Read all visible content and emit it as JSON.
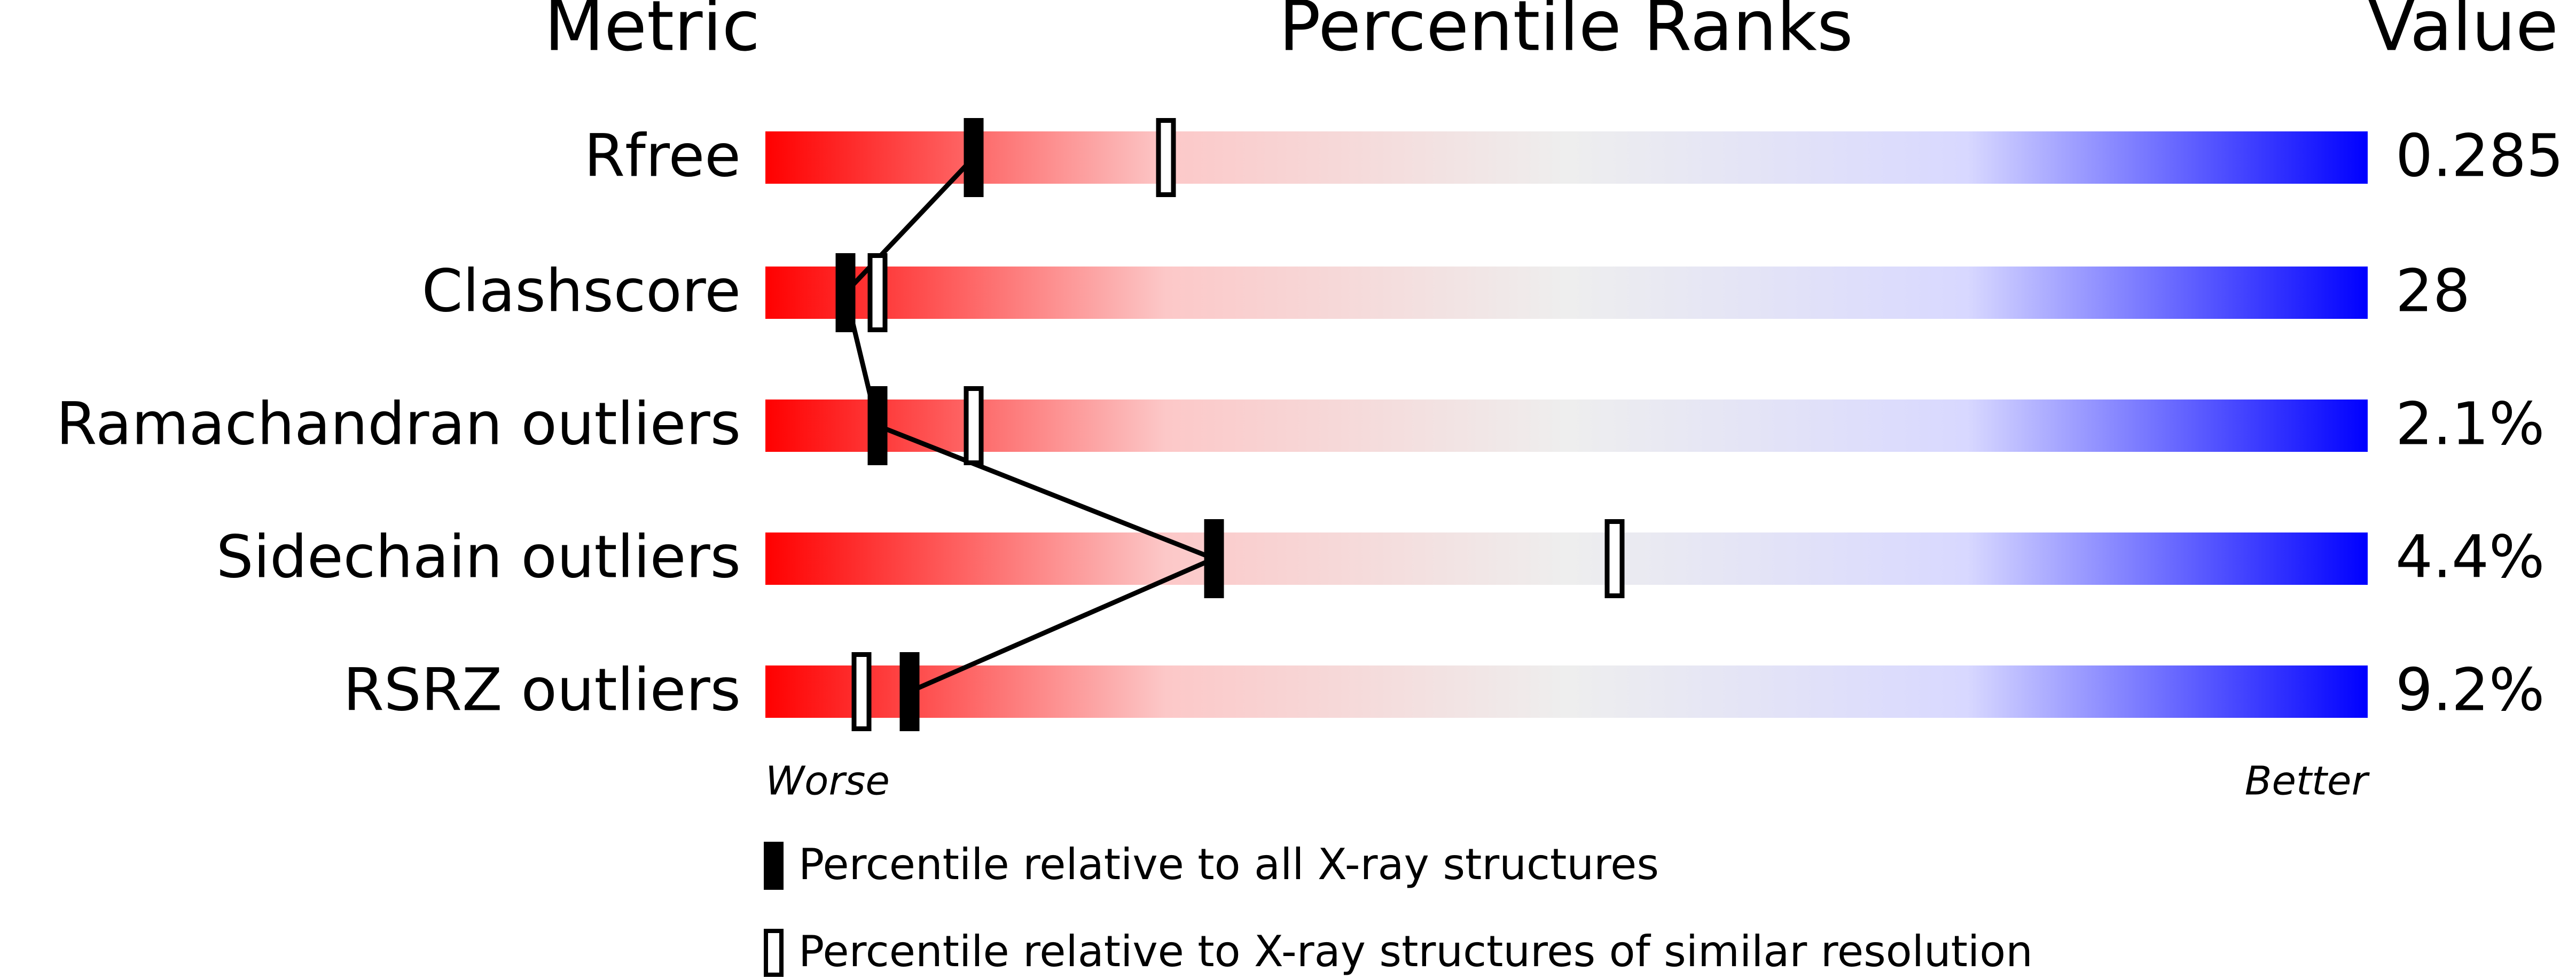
{
  "chart_data": {
    "type": "percentile",
    "headers": {
      "metric": "Metric",
      "ranks": "Percentile Ranks",
      "value": "Value"
    },
    "categories": [
      "Rfree",
      "Clashscore",
      "Ramachandran outliers",
      "Sidechain outliers",
      "RSRZ outliers"
    ],
    "metric_values": [
      "0.285",
      "28",
      "2.1%",
      "4.4%",
      "9.2%"
    ],
    "series": [
      {
        "name": "Percentile relative to all X-ray structures",
        "color": "#000000",
        "filled": true,
        "values": [
          13,
          5,
          7,
          28,
          9
        ]
      },
      {
        "name": "Percentile relative to X-ray structures of similar resolution",
        "color": "#000000",
        "filled": false,
        "values": [
          25,
          7,
          13,
          53,
          6
        ]
      }
    ],
    "xlim": [
      0,
      100
    ],
    "scale_labels": {
      "low": "Worse",
      "high": "Better"
    },
    "gradient": [
      "#ff0000",
      "#fcc8c8",
      "#eeeeee",
      "#d8d8ff",
      "#0000ff"
    ]
  }
}
